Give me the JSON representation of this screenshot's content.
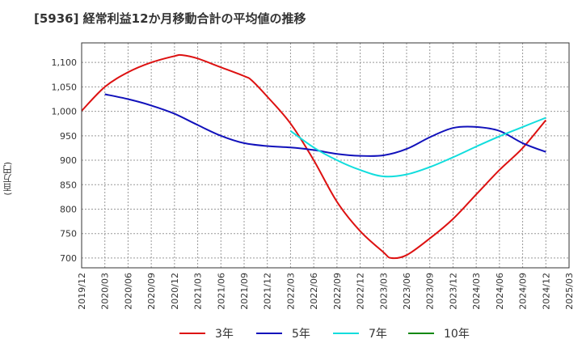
{
  "title": "[5936]  経常利益12か月移動合計の平均値の推移",
  "chart_data": {
    "type": "line",
    "title": "[5936]  経常利益12か月移動合計の平均値の推移",
    "xlabel": "",
    "ylabel": "(百万円)",
    "ylim": [
      680,
      1140
    ],
    "yticks": [
      700,
      750,
      800,
      850,
      900,
      950,
      1000,
      1050,
      1100
    ],
    "ytick_labels": [
      "700",
      "750",
      "800",
      "850",
      "900",
      "950",
      "1,000",
      "1,050",
      "1,100"
    ],
    "xticks": [
      "2019/12",
      "2020/03",
      "2020/06",
      "2020/09",
      "2020/12",
      "2021/03",
      "2021/06",
      "2021/09",
      "2021/12",
      "2022/03",
      "2022/06",
      "2022/09",
      "2022/12",
      "2023/03",
      "2023/06",
      "2023/09",
      "2023/12",
      "2024/03",
      "2024/06",
      "2024/09",
      "2024/12",
      "2025/03"
    ],
    "grid": true,
    "legend_position": "bottom",
    "series": [
      {
        "name": "3年",
        "color": "#dd1111",
        "x": [
          "2019/12",
          "2020/03",
          "2020/06",
          "2020/09",
          "2020/12",
          "2021/01",
          "2021/03",
          "2021/06",
          "2021/09",
          "2021/10",
          "2021/12",
          "2022/03",
          "2022/06",
          "2022/09",
          "2022/12",
          "2023/03",
          "2023/04",
          "2023/06",
          "2023/09",
          "2023/12",
          "2024/03",
          "2024/06",
          "2024/09",
          "2024/12"
        ],
        "values": [
          1001,
          1050,
          1080,
          1100,
          1113,
          1115,
          1108,
          1090,
          1072,
          1063,
          1030,
          975,
          900,
          815,
          755,
          712,
          700,
          706,
          740,
          780,
          830,
          880,
          925,
          982
        ]
      },
      {
        "name": "5年",
        "color": "#1111bb",
        "x": [
          "2020/03",
          "2020/06",
          "2020/09",
          "2020/12",
          "2021/03",
          "2021/06",
          "2021/09",
          "2021/12",
          "2022/03",
          "2022/06",
          "2022/09",
          "2022/12",
          "2023/03",
          "2023/06",
          "2023/09",
          "2023/12",
          "2024/03",
          "2024/06",
          "2024/09",
          "2024/12"
        ],
        "values": [
          1035,
          1025,
          1012,
          995,
          972,
          950,
          935,
          929,
          926,
          921,
          913,
          909,
          910,
          923,
          947,
          966,
          968,
          960,
          935,
          917
        ]
      },
      {
        "name": "7年",
        "color": "#11dddd",
        "x": [
          "2022/03",
          "2022/06",
          "2022/09",
          "2022/12",
          "2023/03",
          "2023/06",
          "2023/09",
          "2023/12",
          "2024/03",
          "2024/06",
          "2024/09",
          "2024/12"
        ],
        "values": [
          960,
          926,
          900,
          880,
          867,
          871,
          886,
          906,
          928,
          949,
          968,
          987
        ]
      },
      {
        "name": "10年",
        "color": "#118811",
        "x": [],
        "values": []
      }
    ]
  }
}
